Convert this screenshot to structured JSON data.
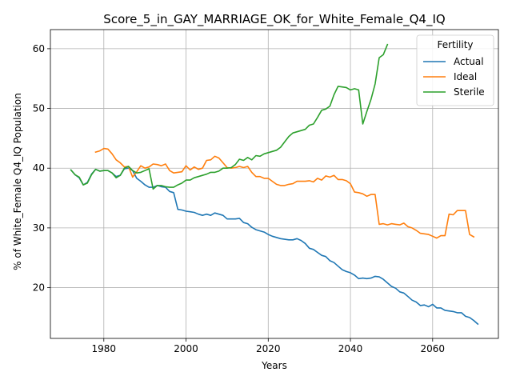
{
  "chart_data": {
    "type": "line",
    "title": "Score_5_in_GAY_MARRIAGE_OK_for_White_Female_Q4_IQ",
    "xlabel": "Years",
    "ylabel": "% of White_Female Q4_IQ Population",
    "xlim": [
      1967,
      2076
    ],
    "ylim": [
      11.5,
      63.2
    ],
    "xticks": [
      1980,
      2000,
      2020,
      2040,
      2060
    ],
    "yticks": [
      20,
      30,
      40,
      50,
      60
    ],
    "grid": true,
    "legend": {
      "title": "Fertility",
      "placement": "upper-right"
    },
    "series": [
      {
        "name": "Actual",
        "color": "#1f77b4",
        "points": [
          [
            1972,
            39.7
          ],
          [
            1973,
            38.9
          ],
          [
            1974,
            38.4
          ],
          [
            1975,
            37.2
          ],
          [
            1976,
            37.6
          ],
          [
            1977,
            39.0
          ],
          [
            1978,
            39.8
          ],
          [
            1979,
            39.5
          ],
          [
            1980,
            39.6
          ],
          [
            1981,
            39.6
          ],
          [
            1982,
            39.2
          ],
          [
            1983,
            38.6
          ],
          [
            1984,
            38.8
          ],
          [
            1985,
            39.9
          ],
          [
            1986,
            40.0
          ],
          [
            1987,
            39.6
          ],
          [
            1988,
            38.3
          ],
          [
            1989,
            37.8
          ],
          [
            1990,
            37.2
          ],
          [
            1991,
            36.8
          ],
          [
            1992,
            36.8
          ],
          [
            1993,
            37.1
          ],
          [
            1994,
            36.9
          ],
          [
            1995,
            36.8
          ],
          [
            1996,
            36.1
          ],
          [
            1997,
            35.9
          ],
          [
            1998,
            33.1
          ],
          [
            1999,
            33.0
          ],
          [
            2000,
            32.8
          ],
          [
            2001,
            32.7
          ],
          [
            2002,
            32.6
          ],
          [
            2003,
            32.3
          ],
          [
            2004,
            32.1
          ],
          [
            2005,
            32.3
          ],
          [
            2006,
            32.1
          ],
          [
            2007,
            32.5
          ],
          [
            2008,
            32.3
          ],
          [
            2009,
            32.1
          ],
          [
            2010,
            31.5
          ],
          [
            2011,
            31.5
          ],
          [
            2012,
            31.5
          ],
          [
            2013,
            31.6
          ],
          [
            2014,
            30.9
          ],
          [
            2015,
            30.7
          ],
          [
            2016,
            30.1
          ],
          [
            2017,
            29.7
          ],
          [
            2018,
            29.5
          ],
          [
            2019,
            29.3
          ],
          [
            2020,
            28.9
          ],
          [
            2021,
            28.6
          ],
          [
            2022,
            28.4
          ],
          [
            2023,
            28.2
          ],
          [
            2024,
            28.1
          ],
          [
            2025,
            28.0
          ],
          [
            2026,
            28.0
          ],
          [
            2027,
            28.2
          ],
          [
            2028,
            27.9
          ],
          [
            2029,
            27.4
          ],
          [
            2030,
            26.6
          ],
          [
            2031,
            26.4
          ],
          [
            2032,
            25.9
          ],
          [
            2033,
            25.4
          ],
          [
            2034,
            25.2
          ],
          [
            2035,
            24.5
          ],
          [
            2036,
            24.2
          ],
          [
            2037,
            23.6
          ],
          [
            2038,
            23.0
          ],
          [
            2039,
            22.7
          ],
          [
            2040,
            22.5
          ],
          [
            2041,
            22.1
          ],
          [
            2042,
            21.5
          ],
          [
            2043,
            21.6
          ],
          [
            2044,
            21.5
          ],
          [
            2045,
            21.6
          ],
          [
            2046,
            21.9
          ],
          [
            2047,
            21.8
          ],
          [
            2048,
            21.4
          ],
          [
            2049,
            20.8
          ],
          [
            2050,
            20.2
          ],
          [
            2051,
            19.9
          ],
          [
            2052,
            19.3
          ],
          [
            2053,
            19.1
          ],
          [
            2054,
            18.5
          ],
          [
            2055,
            17.9
          ],
          [
            2056,
            17.6
          ],
          [
            2057,
            17.0
          ],
          [
            2058,
            17.1
          ],
          [
            2059,
            16.8
          ],
          [
            2060,
            17.2
          ],
          [
            2061,
            16.6
          ],
          [
            2062,
            16.6
          ],
          [
            2063,
            16.2
          ],
          [
            2064,
            16.1
          ],
          [
            2065,
            16.0
          ],
          [
            2066,
            15.8
          ],
          [
            2067,
            15.8
          ],
          [
            2068,
            15.2
          ],
          [
            2069,
            15.0
          ],
          [
            2070,
            14.5
          ],
          [
            2071,
            13.9
          ]
        ]
      },
      {
        "name": "Ideal",
        "color": "#ff7f0e",
        "points": [
          [
            1978,
            42.7
          ],
          [
            1979,
            42.9
          ],
          [
            1980,
            43.3
          ],
          [
            1981,
            43.2
          ],
          [
            1982,
            42.4
          ],
          [
            1983,
            41.4
          ],
          [
            1984,
            40.9
          ],
          [
            1985,
            40.2
          ],
          [
            1986,
            40.3
          ],
          [
            1987,
            38.5
          ],
          [
            1988,
            39.4
          ],
          [
            1989,
            40.4
          ],
          [
            1990,
            40.0
          ],
          [
            1991,
            40.2
          ],
          [
            1992,
            40.7
          ],
          [
            1993,
            40.6
          ],
          [
            1994,
            40.4
          ],
          [
            1995,
            40.7
          ],
          [
            1996,
            39.6
          ],
          [
            1997,
            39.2
          ],
          [
            1998,
            39.3
          ],
          [
            1999,
            39.4
          ],
          [
            2000,
            40.4
          ],
          [
            2001,
            39.7
          ],
          [
            2002,
            40.2
          ],
          [
            2003,
            39.8
          ],
          [
            2004,
            40.0
          ],
          [
            2005,
            41.3
          ],
          [
            2006,
            41.4
          ],
          [
            2007,
            42.0
          ],
          [
            2008,
            41.7
          ],
          [
            2009,
            40.9
          ],
          [
            2010,
            40.1
          ],
          [
            2011,
            40.0
          ],
          [
            2012,
            40.1
          ],
          [
            2013,
            40.3
          ],
          [
            2014,
            40.1
          ],
          [
            2015,
            40.3
          ],
          [
            2016,
            39.3
          ],
          [
            2017,
            38.6
          ],
          [
            2018,
            38.6
          ],
          [
            2019,
            38.3
          ],
          [
            2020,
            38.3
          ],
          [
            2021,
            37.8
          ],
          [
            2022,
            37.3
          ],
          [
            2023,
            37.1
          ],
          [
            2024,
            37.1
          ],
          [
            2025,
            37.3
          ],
          [
            2026,
            37.4
          ],
          [
            2027,
            37.8
          ],
          [
            2028,
            37.8
          ],
          [
            2029,
            37.8
          ],
          [
            2030,
            37.9
          ],
          [
            2031,
            37.7
          ],
          [
            2032,
            38.3
          ],
          [
            2033,
            38.0
          ],
          [
            2034,
            38.7
          ],
          [
            2035,
            38.5
          ],
          [
            2036,
            38.8
          ],
          [
            2037,
            38.1
          ],
          [
            2038,
            38.1
          ],
          [
            2039,
            37.9
          ],
          [
            2040,
            37.4
          ],
          [
            2041,
            36.0
          ],
          [
            2042,
            35.9
          ],
          [
            2043,
            35.7
          ],
          [
            2044,
            35.3
          ],
          [
            2045,
            35.6
          ],
          [
            2046,
            35.6
          ],
          [
            2047,
            30.6
          ],
          [
            2048,
            30.7
          ],
          [
            2049,
            30.5
          ],
          [
            2050,
            30.7
          ],
          [
            2051,
            30.6
          ],
          [
            2052,
            30.5
          ],
          [
            2053,
            30.8
          ],
          [
            2054,
            30.2
          ],
          [
            2055,
            30.0
          ],
          [
            2056,
            29.6
          ],
          [
            2057,
            29.1
          ],
          [
            2058,
            29.0
          ],
          [
            2059,
            28.9
          ],
          [
            2060,
            28.6
          ],
          [
            2061,
            28.3
          ],
          [
            2062,
            28.7
          ],
          [
            2063,
            28.7
          ],
          [
            2064,
            32.3
          ],
          [
            2065,
            32.2
          ],
          [
            2066,
            32.9
          ],
          [
            2067,
            32.9
          ],
          [
            2068,
            32.9
          ],
          [
            2069,
            28.9
          ],
          [
            2070,
            28.5
          ]
        ]
      },
      {
        "name": "Sterile",
        "color": "#2ca02c",
        "points": [
          [
            1972,
            39.7
          ],
          [
            1973,
            38.9
          ],
          [
            1974,
            38.5
          ],
          [
            1975,
            37.2
          ],
          [
            1976,
            37.5
          ],
          [
            1977,
            38.9
          ],
          [
            1978,
            39.8
          ],
          [
            1979,
            39.5
          ],
          [
            1980,
            39.6
          ],
          [
            1981,
            39.6
          ],
          [
            1982,
            39.2
          ],
          [
            1983,
            38.4
          ],
          [
            1984,
            38.8
          ],
          [
            1985,
            40.0
          ],
          [
            1986,
            40.3
          ],
          [
            1987,
            39.6
          ],
          [
            1988,
            39.2
          ],
          [
            1989,
            39.3
          ],
          [
            1990,
            39.6
          ],
          [
            1991,
            39.9
          ],
          [
            1992,
            36.5
          ],
          [
            1993,
            37.1
          ],
          [
            1994,
            37.1
          ],
          [
            1995,
            36.9
          ],
          [
            1996,
            36.8
          ],
          [
            1997,
            36.8
          ],
          [
            1998,
            37.2
          ],
          [
            1999,
            37.5
          ],
          [
            2000,
            38.0
          ],
          [
            2001,
            38.0
          ],
          [
            2002,
            38.4
          ],
          [
            2003,
            38.6
          ],
          [
            2004,
            38.8
          ],
          [
            2005,
            39.0
          ],
          [
            2006,
            39.3
          ],
          [
            2007,
            39.3
          ],
          [
            2008,
            39.5
          ],
          [
            2009,
            40.0
          ],
          [
            2010,
            40.0
          ],
          [
            2011,
            40.1
          ],
          [
            2012,
            40.6
          ],
          [
            2013,
            41.5
          ],
          [
            2014,
            41.3
          ],
          [
            2015,
            41.8
          ],
          [
            2016,
            41.4
          ],
          [
            2017,
            42.1
          ],
          [
            2018,
            42.0
          ],
          [
            2019,
            42.4
          ],
          [
            2020,
            42.6
          ],
          [
            2021,
            42.8
          ],
          [
            2022,
            43.0
          ],
          [
            2023,
            43.5
          ],
          [
            2024,
            44.4
          ],
          [
            2025,
            45.3
          ],
          [
            2026,
            45.9
          ],
          [
            2027,
            46.1
          ],
          [
            2028,
            46.3
          ],
          [
            2029,
            46.5
          ],
          [
            2030,
            47.2
          ],
          [
            2031,
            47.4
          ],
          [
            2032,
            48.5
          ],
          [
            2033,
            49.7
          ],
          [
            2034,
            49.9
          ],
          [
            2035,
            50.4
          ],
          [
            2036,
            52.3
          ],
          [
            2037,
            53.7
          ],
          [
            2038,
            53.6
          ],
          [
            2039,
            53.5
          ],
          [
            2040,
            53.1
          ],
          [
            2041,
            53.3
          ],
          [
            2042,
            53.1
          ],
          [
            2043,
            47.4
          ],
          [
            2044,
            49.5
          ],
          [
            2045,
            51.5
          ],
          [
            2046,
            54.1
          ],
          [
            2047,
            58.5
          ],
          [
            2048,
            59.0
          ],
          [
            2049,
            60.7
          ]
        ]
      }
    ]
  }
}
